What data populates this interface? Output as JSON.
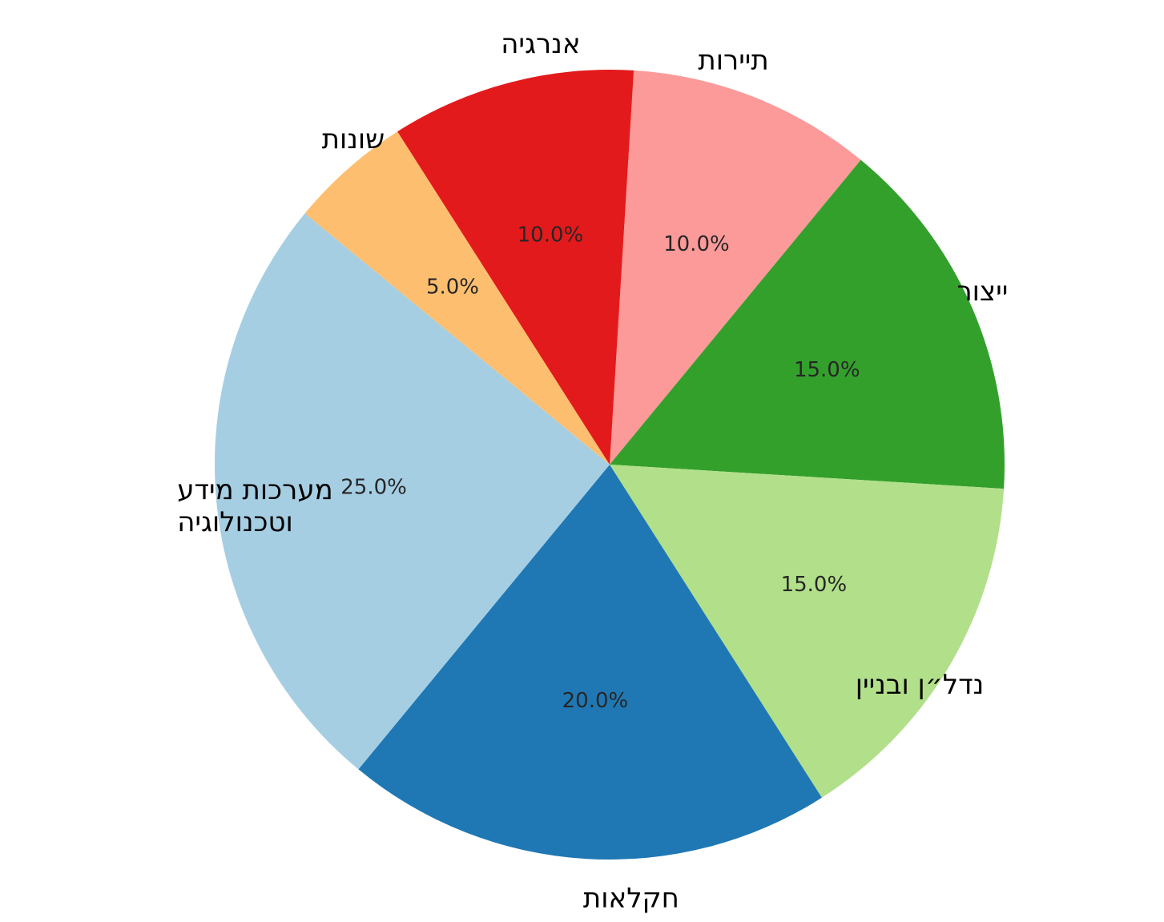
{
  "chart_data": {
    "type": "pie",
    "title": "",
    "categories": [
      "תיירות",
      "ייצור",
      "נדל״ן ובניין",
      "חקלאות",
      "מערכות מידע וטכנולוגיה",
      "שונות",
      "אנרגיה"
    ],
    "category_lines": [
      [
        "תיירות"
      ],
      [
        "ייצור"
      ],
      [
        "נדל״ן ובניין"
      ],
      [
        "חקלאות"
      ],
      [
        "מערכות מידע",
        "וטכנולוגיה"
      ],
      [
        "שונות"
      ],
      [
        "אנרגיה"
      ]
    ],
    "values": [
      10.0,
      15.0,
      15.0,
      20.0,
      25.0,
      5.0,
      10.0
    ],
    "value_labels": [
      "10.0%",
      "15.0%",
      "15.0%",
      "20.0%",
      "25.0%",
      "5.0%",
      "10.0%"
    ],
    "colors": [
      "#fb9a99",
      "#33a02c",
      "#b2df8a",
      "#1f78b4",
      "#a6cee3",
      "#fdbf6f",
      "#e31a1c"
    ],
    "start_angle_deg": 86.5,
    "direction": "clockwise",
    "legend": "none"
  }
}
